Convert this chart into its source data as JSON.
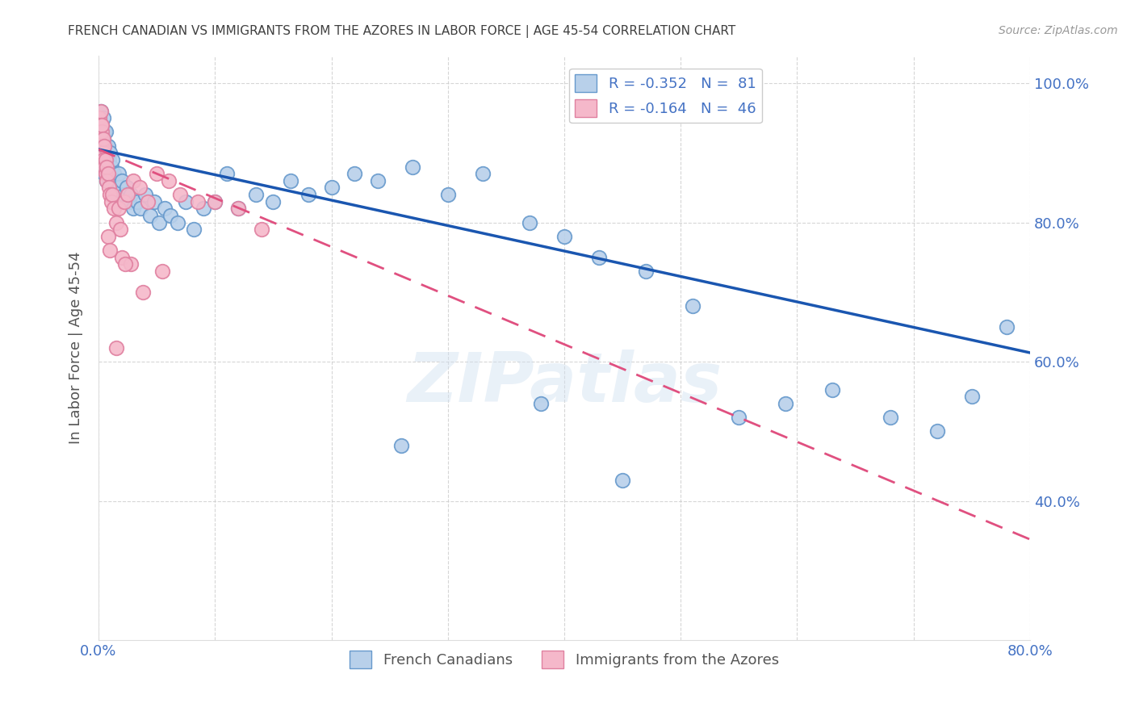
{
  "title": "FRENCH CANADIAN VS IMMIGRANTS FROM THE AZORES IN LABOR FORCE | AGE 45-54 CORRELATION CHART",
  "source": "Source: ZipAtlas.com",
  "ylabel": "In Labor Force | Age 45-54",
  "xlim": [
    0.0,
    0.8
  ],
  "ylim": [
    0.2,
    1.04
  ],
  "trendline_blue": [
    0.905,
    -0.365
  ],
  "trendline_pink": [
    0.905,
    -0.7
  ],
  "legend_blue_label": "R = -0.352   N =  81",
  "legend_pink_label": "R = -0.164   N =  46",
  "legend_blue_color": "#b8d0ea",
  "legend_pink_color": "#f5b8ca",
  "trendline_blue_color": "#1a56b0",
  "trendline_pink_color": "#e05080",
  "dot_blue_color": "#b8d0ea",
  "dot_pink_color": "#f5b8ca",
  "dot_blue_edge": "#6699cc",
  "dot_pink_edge": "#e080a0",
  "watermark": "ZIPatlas",
  "grid_color": "#cccccc",
  "bg_color": "#ffffff",
  "title_color": "#404040",
  "axis_color": "#4472c4",
  "label_color": "#555555",
  "blue_x": [
    0.001,
    0.001,
    0.002,
    0.002,
    0.002,
    0.003,
    0.003,
    0.003,
    0.004,
    0.004,
    0.004,
    0.005,
    0.005,
    0.005,
    0.006,
    0.006,
    0.006,
    0.007,
    0.007,
    0.008,
    0.008,
    0.009,
    0.009,
    0.01,
    0.01,
    0.011,
    0.012,
    0.012,
    0.013,
    0.014,
    0.015,
    0.016,
    0.017,
    0.018,
    0.019,
    0.02,
    0.022,
    0.024,
    0.026,
    0.028,
    0.03,
    0.033,
    0.036,
    0.04,
    0.044,
    0.048,
    0.052,
    0.057,
    0.062,
    0.068,
    0.075,
    0.082,
    0.09,
    0.1,
    0.11,
    0.12,
    0.135,
    0.15,
    0.165,
    0.18,
    0.2,
    0.22,
    0.24,
    0.27,
    0.3,
    0.33,
    0.37,
    0.4,
    0.43,
    0.47,
    0.51,
    0.55,
    0.59,
    0.63,
    0.68,
    0.72,
    0.75,
    0.78,
    0.45,
    0.38,
    0.26
  ],
  "blue_y": [
    0.92,
    0.95,
    0.9,
    0.93,
    0.96,
    0.91,
    0.94,
    0.88,
    0.92,
    0.9,
    0.95,
    0.89,
    0.93,
    0.87,
    0.91,
    0.88,
    0.93,
    0.86,
    0.9,
    0.88,
    0.91,
    0.87,
    0.89,
    0.86,
    0.9,
    0.88,
    0.86,
    0.89,
    0.87,
    0.85,
    0.86,
    0.84,
    0.87,
    0.85,
    0.83,
    0.86,
    0.84,
    0.85,
    0.83,
    0.84,
    0.82,
    0.83,
    0.82,
    0.84,
    0.81,
    0.83,
    0.8,
    0.82,
    0.81,
    0.8,
    0.83,
    0.79,
    0.82,
    0.83,
    0.87,
    0.82,
    0.84,
    0.83,
    0.86,
    0.84,
    0.85,
    0.87,
    0.86,
    0.88,
    0.84,
    0.87,
    0.8,
    0.78,
    0.75,
    0.73,
    0.68,
    0.52,
    0.54,
    0.56,
    0.52,
    0.5,
    0.55,
    0.65,
    0.43,
    0.54,
    0.48
  ],
  "pink_x": [
    0.001,
    0.001,
    0.002,
    0.002,
    0.002,
    0.003,
    0.003,
    0.003,
    0.004,
    0.004,
    0.004,
    0.005,
    0.005,
    0.006,
    0.006,
    0.007,
    0.007,
    0.008,
    0.009,
    0.01,
    0.011,
    0.012,
    0.013,
    0.015,
    0.017,
    0.019,
    0.022,
    0.025,
    0.03,
    0.035,
    0.042,
    0.05,
    0.06,
    0.07,
    0.085,
    0.1,
    0.12,
    0.14,
    0.02,
    0.028,
    0.008,
    0.01,
    0.015,
    0.023,
    0.038,
    0.055
  ],
  "pink_y": [
    0.95,
    0.93,
    0.96,
    0.94,
    0.92,
    0.93,
    0.91,
    0.94,
    0.9,
    0.92,
    0.89,
    0.91,
    0.88,
    0.89,
    0.87,
    0.88,
    0.86,
    0.87,
    0.85,
    0.84,
    0.83,
    0.84,
    0.82,
    0.8,
    0.82,
    0.79,
    0.83,
    0.84,
    0.86,
    0.85,
    0.83,
    0.87,
    0.86,
    0.84,
    0.83,
    0.83,
    0.82,
    0.79,
    0.75,
    0.74,
    0.78,
    0.76,
    0.62,
    0.74,
    0.7,
    0.73
  ]
}
